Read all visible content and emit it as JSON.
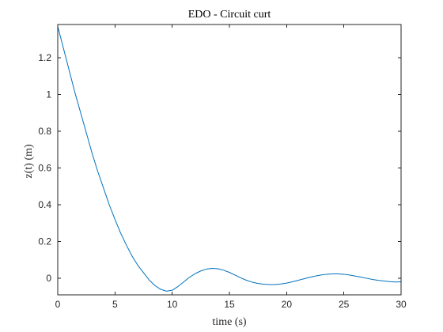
{
  "chart_data": {
    "type": "line",
    "title": "EDO - Circuit curt",
    "xlabel": "time (s)",
    "ylabel": "z(t) (m)",
    "xlim": [
      0,
      30
    ],
    "ylim": [
      -0.09,
      1.38
    ],
    "xticks": [
      0,
      5,
      10,
      15,
      20,
      25,
      30
    ],
    "yticks": [
      0,
      0.2,
      0.4,
      0.6,
      0.8,
      1,
      1.2
    ],
    "xtick_labels": [
      "0",
      "5",
      "10",
      "15",
      "20",
      "25",
      "30"
    ],
    "ytick_labels": [
      "0",
      "0.2",
      "0.4",
      "0.6",
      "0.8",
      "1",
      "1.2"
    ],
    "grid": false,
    "box": true,
    "series": [
      {
        "color": "#0072BD",
        "x": [
          0,
          0.5,
          1,
          1.5,
          2,
          2.5,
          3,
          3.5,
          4,
          4.5,
          5,
          5.5,
          6,
          6.5,
          7,
          7.5,
          8,
          8.5,
          9,
          9.5,
          10,
          10.5,
          11,
          11.5,
          12,
          12.5,
          13,
          13.5,
          14,
          14.5,
          15,
          15.5,
          16,
          16.5,
          17,
          17.5,
          18,
          18.5,
          19,
          19.5,
          20,
          20.5,
          21,
          21.5,
          22,
          22.5,
          23,
          23.5,
          24,
          24.5,
          25,
          25.5,
          26,
          26.5,
          27,
          27.5,
          28,
          28.5,
          29,
          29.5,
          30
        ],
        "y": [
          1.37,
          1.25,
          1.13,
          1.01,
          0.9,
          0.79,
          0.68,
          0.58,
          0.49,
          0.4,
          0.32,
          0.245,
          0.18,
          0.12,
          0.07,
          0.03,
          -0.01,
          -0.04,
          -0.06,
          -0.07,
          -0.065,
          -0.045,
          -0.02,
          0.005,
          0.025,
          0.04,
          0.05,
          0.054,
          0.052,
          0.044,
          0.032,
          0.017,
          0.002,
          -0.011,
          -0.021,
          -0.028,
          -0.032,
          -0.034,
          -0.034,
          -0.031,
          -0.026,
          -0.019,
          -0.011,
          -0.003,
          0.005,
          0.012,
          0.018,
          0.022,
          0.024,
          0.024,
          0.022,
          0.018,
          0.012,
          0.006,
          0.0,
          -0.006,
          -0.011,
          -0.015,
          -0.018,
          -0.02,
          -0.019
        ]
      }
    ]
  }
}
